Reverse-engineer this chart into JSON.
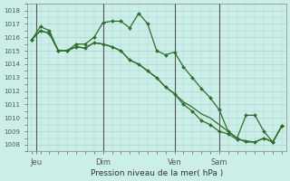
{
  "bg_color": "#cceee8",
  "grid_color": "#aad4cc",
  "line_color": "#2d6e2d",
  "marker_color": "#2d6e2d",
  "xlabel": "Pression niveau de la mer( hPa )",
  "ylim": [
    1007.5,
    1018.5
  ],
  "yticks": [
    1008,
    1009,
    1010,
    1011,
    1012,
    1013,
    1014,
    1015,
    1016,
    1017,
    1018
  ],
  "xtick_labels": [
    "Jeu",
    "Dim",
    "Ven",
    "Sam"
  ],
  "xtick_positions": [
    0.5,
    8,
    16,
    21
  ],
  "vlines_x": [
    0.5,
    8,
    16,
    21
  ],
  "series": [
    {
      "x": [
        0,
        1,
        2,
        3,
        4,
        5,
        6,
        7,
        8,
        9,
        10,
        11,
        12,
        13,
        14,
        15,
        16,
        17,
        18,
        19,
        20,
        21,
        22,
        23,
        24,
        25,
        26,
        27,
        28
      ],
      "y": [
        1015.8,
        1016.8,
        1016.5,
        1015.0,
        1015.0,
        1015.5,
        1015.5,
        1016.0,
        1017.1,
        1017.2,
        1017.2,
        1016.7,
        1017.8,
        1017.0,
        1015.0,
        1014.7,
        1014.9,
        1013.8,
        1013.0,
        1012.2,
        1011.5,
        1010.6,
        1009.0,
        1008.5,
        1010.2,
        1010.2,
        1009.0,
        1008.2,
        1009.4
      ],
      "markers": true
    },
    {
      "x": [
        0,
        1,
        2,
        3,
        4,
        5,
        6,
        7,
        8,
        9,
        10,
        11,
        12,
        13,
        14,
        15,
        16,
        17,
        18,
        19,
        20,
        21,
        22,
        23,
        24,
        25,
        26,
        27,
        28
      ],
      "y": [
        1015.8,
        1016.5,
        1016.3,
        1015.0,
        1015.0,
        1015.3,
        1015.2,
        1015.6,
        1015.5,
        1015.3,
        1015.0,
        1014.3,
        1014.0,
        1013.5,
        1013.0,
        1012.3,
        1011.8,
        1011.0,
        1010.5,
        1009.8,
        1009.5,
        1009.0,
        1008.8,
        1008.4,
        1008.3,
        1008.2,
        1008.5,
        1008.2,
        1009.4
      ],
      "markers": true
    },
    {
      "x": [
        0,
        1,
        2,
        3,
        4,
        5,
        6,
        7,
        8,
        9,
        10,
        11,
        12,
        13,
        14,
        15,
        16,
        17,
        18,
        19,
        20,
        21,
        22,
        23,
        24,
        25,
        26,
        27,
        28
      ],
      "y": [
        1015.8,
        1016.5,
        1016.3,
        1015.0,
        1015.0,
        1015.3,
        1015.2,
        1015.6,
        1015.5,
        1015.3,
        1015.0,
        1014.3,
        1014.0,
        1013.5,
        1013.0,
        1012.3,
        1011.8,
        1011.2,
        1010.8,
        1010.3,
        1010.0,
        1009.5,
        1009.0,
        1008.5,
        1008.2,
        1008.2,
        1008.5,
        1008.2,
        1009.4
      ],
      "markers": false
    }
  ],
  "figsize": [
    3.2,
    2.0
  ],
  "dpi": 100
}
